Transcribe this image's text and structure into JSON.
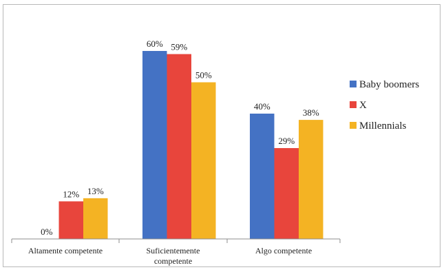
{
  "chart_data": {
    "type": "bar",
    "categories": [
      "Altamente competente",
      "Suficientemente competente",
      "Algo competente"
    ],
    "category_lines": [
      [
        "Altamente competente"
      ],
      [
        "Suficientemente",
        "competente"
      ],
      [
        "Algo competente"
      ]
    ],
    "series": [
      {
        "name": "Baby boomers",
        "values": [
          0,
          60,
          40
        ],
        "labels": [
          "0%",
          "60%",
          "40%"
        ],
        "color": "#4472C4"
      },
      {
        "name": "X",
        "values": [
          12,
          59,
          29
        ],
        "labels": [
          "12%",
          "59%",
          "29%"
        ],
        "color": "#E8453C"
      },
      {
        "name": "Millennials",
        "values": [
          13,
          50,
          38
        ],
        "labels": [
          "13%",
          "50%",
          "38%"
        ],
        "color": "#F4B323"
      }
    ],
    "ylim": [
      0,
      70
    ],
    "grid": false,
    "legend": "right",
    "title": "",
    "xlabel": "",
    "ylabel": ""
  }
}
